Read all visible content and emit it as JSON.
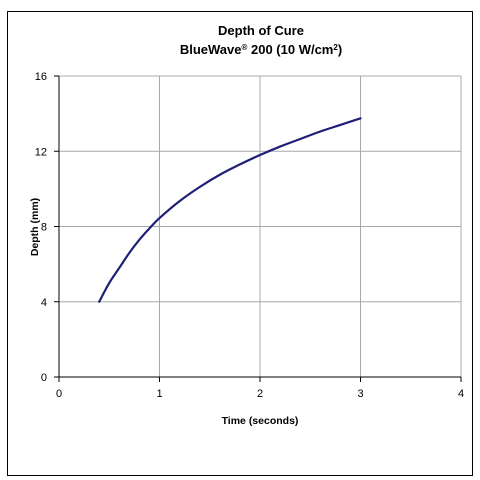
{
  "chart_data": {
    "type": "line",
    "title": "Depth of Cure",
    "subtitle": {
      "prefix": "BlueWave",
      "registered": "®",
      "middle": " 200 (10 W/cm",
      "sup": "2",
      "suffix": ")"
    },
    "xlabel": "Time (seconds)",
    "ylabel": "Depth (mm)",
    "xlim": [
      0,
      4
    ],
    "ylim": [
      0,
      16
    ],
    "x_ticks": [
      0,
      1,
      2,
      3,
      4
    ],
    "y_ticks": [
      0,
      4,
      8,
      12,
      16
    ],
    "grid": true,
    "series": [
      {
        "color": "#1f1f7a",
        "x": [
          0.4,
          0.5,
          0.6,
          0.7,
          0.8,
          0.9,
          1.0,
          1.2,
          1.4,
          1.6,
          1.8,
          2.0,
          2.2,
          2.4,
          2.6,
          2.8,
          3.0
        ],
        "y": [
          4.0,
          5.0,
          5.8,
          6.6,
          7.3,
          7.9,
          8.45,
          9.35,
          10.1,
          10.75,
          11.3,
          11.8,
          12.25,
          12.65,
          13.05,
          13.4,
          13.75
        ]
      }
    ]
  }
}
